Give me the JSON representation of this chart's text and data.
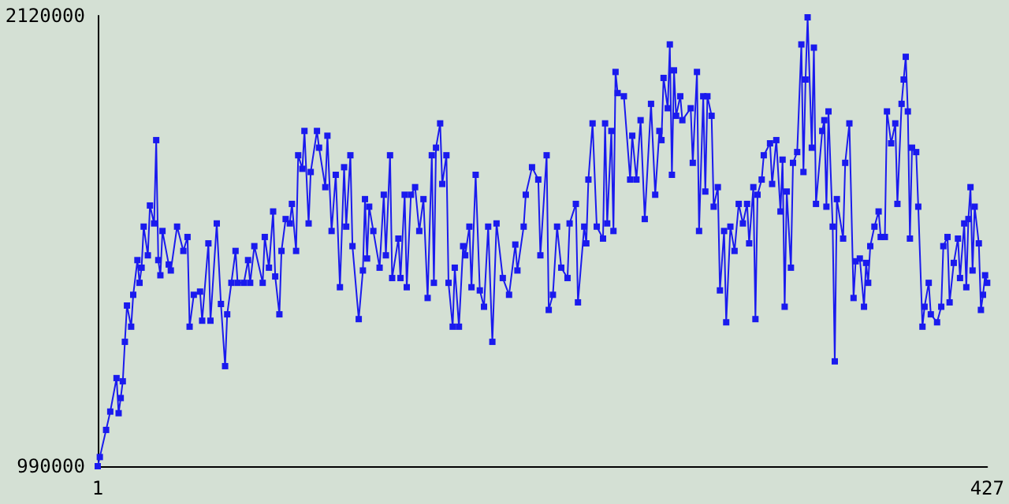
{
  "chart_data": {
    "type": "line",
    "color": "#1a1aee",
    "marker": "square",
    "line_style": "solid",
    "grid": false,
    "xlim": [
      1,
      427
    ],
    "xticks": [
      1,
      427
    ],
    "ylim": [
      990000,
      2120000
    ],
    "yticks": [
      990000,
      2120000
    ],
    "x": [
      1,
      2,
      5,
      7,
      10,
      11,
      12,
      13,
      14,
      15,
      17,
      18,
      20,
      21,
      22,
      23,
      25,
      26,
      28,
      29,
      30,
      31,
      32,
      35,
      36,
      39,
      42,
      44,
      45,
      47,
      50,
      51,
      54,
      55,
      58,
      60,
      62,
      63,
      65,
      67,
      68,
      71,
      73,
      74,
      76,
      80,
      81,
      83,
      85,
      86,
      88,
      89,
      91,
      93,
      94,
      96,
      97,
      99,
      100,
      102,
      103,
      106,
      107,
      110,
      111,
      113,
      115,
      117,
      119,
      120,
      122,
      123,
      126,
      128,
      129,
      130,
      131,
      133,
      136,
      138,
      139,
      141,
      142,
      145,
      146,
      148,
      149,
      151,
      153,
      155,
      157,
      159,
      161,
      162,
      163,
      165,
      166,
      168,
      169,
      171,
      172,
      174,
      176,
      177,
      179,
      180,
      182,
      184,
      186,
      188,
      190,
      192,
      195,
      198,
      201,
      202,
      205,
      206,
      209,
      212,
      213,
      216,
      217,
      219,
      221,
      223,
      226,
      227,
      230,
      231,
      234,
      235,
      236,
      238,
      240,
      243,
      244,
      245,
      247,
      248,
      249,
      250,
      253,
      256,
      257,
      259,
      261,
      263,
      266,
      268,
      270,
      271,
      272,
      274,
      275,
      276,
      277,
      278,
      280,
      281,
      285,
      286,
      288,
      289,
      291,
      292,
      293,
      295,
      296,
      298,
      299,
      301,
      302,
      304,
      306,
      308,
      310,
      312,
      313,
      315,
      316,
      317,
      319,
      320,
      323,
      324,
      326,
      328,
      329,
      330,
      331,
      333,
      334,
      336,
      338,
      339,
      340,
      341,
      343,
      344,
      345,
      348,
      349,
      350,
      351,
      353,
      354,
      355,
      358,
      359,
      361,
      363,
      364,
      366,
      368,
      369,
      370,
      371,
      373,
      375,
      376,
      378,
      379,
      381,
      383,
      384,
      386,
      387,
      388,
      389,
      390,
      391,
      393,
      394,
      396,
      397,
      399,
      400,
      403,
      405,
      406,
      408,
      409,
      411,
      413,
      414,
      416,
      417,
      418,
      419,
      420,
      421,
      423,
      424,
      425,
      426,
      427
    ],
    "values": [
      990000,
      1013000,
      1081000,
      1127000,
      1211000,
      1123000,
      1161000,
      1203000,
      1302000,
      1393000,
      1340000,
      1420000,
      1507000,
      1450000,
      1488000,
      1591000,
      1519000,
      1644000,
      1599000,
      1808000,
      1507000,
      1469000,
      1580000,
      1496000,
      1481000,
      1591000,
      1530000,
      1565000,
      1340000,
      1420000,
      1428000,
      1355000,
      1549000,
      1355000,
      1599000,
      1397000,
      1241000,
      1371000,
      1450000,
      1530000,
      1450000,
      1450000,
      1507000,
      1450000,
      1542000,
      1450000,
      1565000,
      1488000,
      1629000,
      1466000,
      1371000,
      1530000,
      1610000,
      1599000,
      1648000,
      1530000,
      1770000,
      1736000,
      1831000,
      1599000,
      1728000,
      1831000,
      1789000,
      1690000,
      1819000,
      1580000,
      1721000,
      1439000,
      1740000,
      1591000,
      1770000,
      1542000,
      1359000,
      1481000,
      1660000,
      1511000,
      1641000,
      1580000,
      1488000,
      1671000,
      1519000,
      1770000,
      1462000,
      1561000,
      1462000,
      1671000,
      1439000,
      1671000,
      1690000,
      1580000,
      1660000,
      1412000,
      1770000,
      1450000,
      1789000,
      1850000,
      1698000,
      1770000,
      1450000,
      1340000,
      1488000,
      1340000,
      1542000,
      1519000,
      1591000,
      1439000,
      1721000,
      1431000,
      1390000,
      1591000,
      1302000,
      1599000,
      1462000,
      1420000,
      1546000,
      1481000,
      1591000,
      1671000,
      1740000,
      1709000,
      1519000,
      1770000,
      1382000,
      1420000,
      1591000,
      1488000,
      1462000,
      1599000,
      1648000,
      1401000,
      1591000,
      1549000,
      1709000,
      1850000,
      1591000,
      1561000,
      1850000,
      1599000,
      1831000,
      1580000,
      1979000,
      1926000,
      1918000,
      1709000,
      1819000,
      1709000,
      1858000,
      1610000,
      1899000,
      1671000,
      1831000,
      1808000,
      1964000,
      1888000,
      2048000,
      1721000,
      1983000,
      1869000,
      1918000,
      1858000,
      1888000,
      1751000,
      1979000,
      1580000,
      1918000,
      1679000,
      1918000,
      1869000,
      1641000,
      1690000,
      1431000,
      1580000,
      1351000,
      1591000,
      1530000,
      1648000,
      1599000,
      1648000,
      1549000,
      1690000,
      1359000,
      1671000,
      1709000,
      1770000,
      1800000,
      1698000,
      1808000,
      1629000,
      1759000,
      1390000,
      1679000,
      1488000,
      1751000,
      1778000,
      2048000,
      1728000,
      1960000,
      2116000,
      1789000,
      2040000,
      1648000,
      1831000,
      1858000,
      1641000,
      1880000,
      1591000,
      1253000,
      1660000,
      1561000,
      1751000,
      1850000,
      1412000,
      1504000,
      1511000,
      1390000,
      1500000,
      1450000,
      1542000,
      1591000,
      1629000,
      1565000,
      1565000,
      1880000,
      1800000,
      1850000,
      1648000,
      1899000,
      1960000,
      2017000,
      1880000,
      1561000,
      1789000,
      1778000,
      1641000,
      1340000,
      1390000,
      1450000,
      1371000,
      1351000,
      1390000,
      1542000,
      1565000,
      1401000,
      1500000,
      1561000,
      1462000,
      1599000,
      1439000,
      1610000,
      1690000,
      1481000,
      1641000,
      1549000,
      1382000,
      1420000,
      1469000,
      1450000
    ]
  }
}
